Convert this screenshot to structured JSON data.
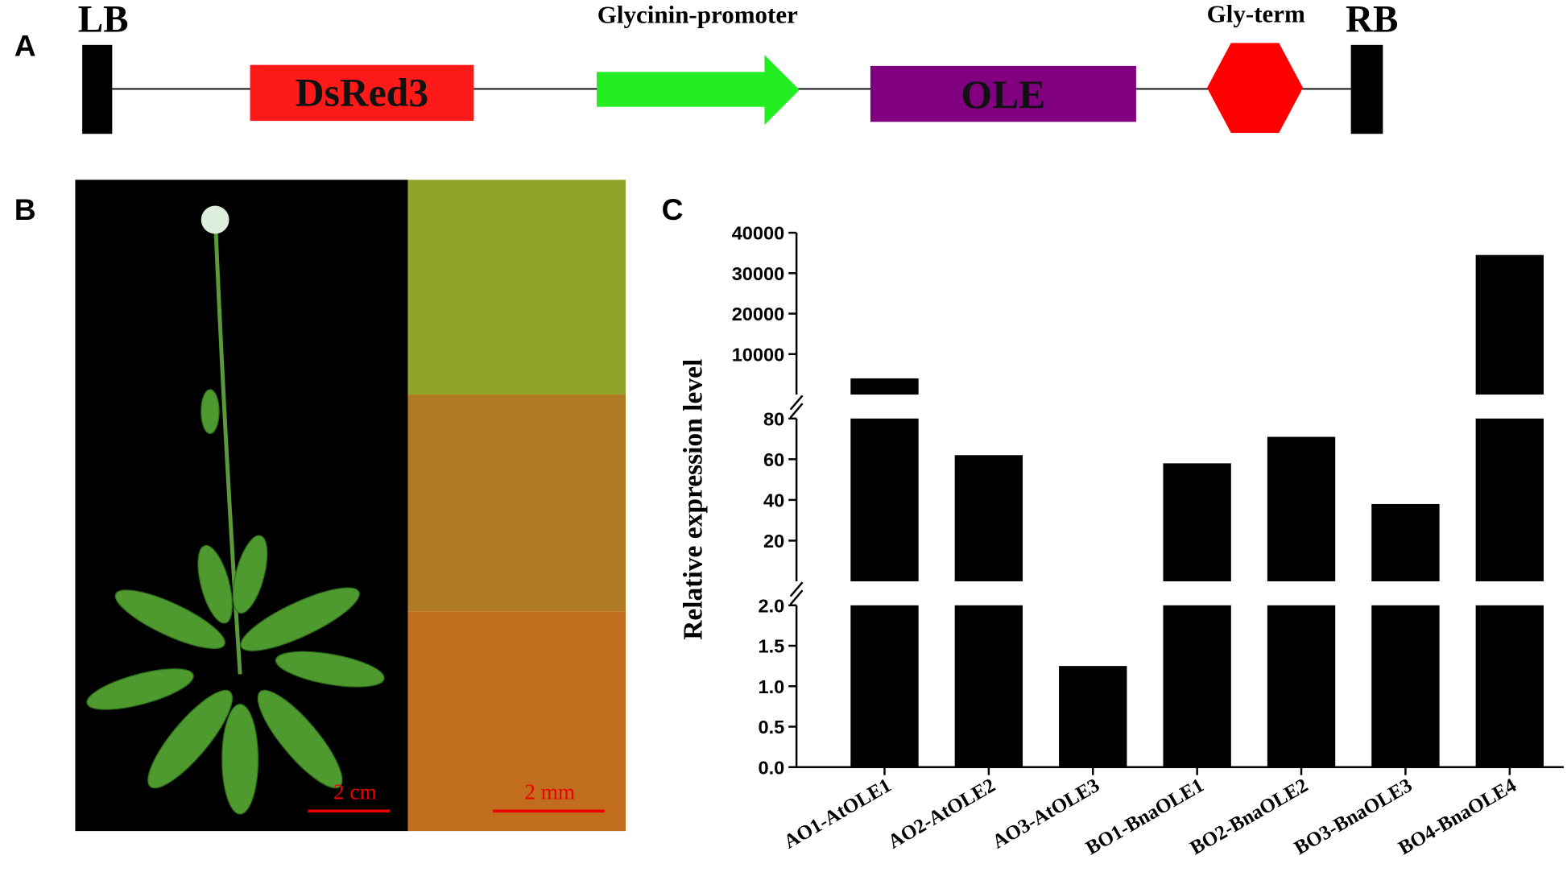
{
  "panel_a": {
    "label": "A",
    "left_border": "LB",
    "right_border": "RB",
    "promoter": "Glycinin-promoter",
    "terminator": "Gly-term",
    "reporter": "DsRed3",
    "gene": "OLE"
  },
  "panel_b": {
    "label": "B",
    "plant_scale": "2 cm",
    "seed_scale": "2 mm"
  },
  "chart_data": {
    "type": "broken-bar",
    "panel_label": "C",
    "y_label": "Relative expression level",
    "categories": [
      "AO1-AtOLE1",
      "AO2-AtOLE2",
      "AO3-AtOLE3",
      "BO1-BnaOLE1",
      "BO2-BnaOLE2",
      "BO3-BnaOLE3",
      "BO4-BnaOLE4"
    ],
    "values": [
      4000,
      62,
      1.25,
      58,
      71,
      38,
      34500
    ],
    "color": "#000000",
    "y_segments": [
      {
        "ylim": [
          0,
          2
        ],
        "yticks": [
          {
            "value": 0,
            "label": "0.0"
          },
          0.5,
          {
            "value": 1,
            "label": "1.0"
          },
          1.5,
          {
            "value": 2,
            "label": "2.0"
          }
        ]
      },
      {
        "ylim": [
          0,
          80
        ],
        "yticks": [
          20,
          40,
          60,
          80
        ]
      },
      {
        "ylim": [
          0,
          40000
        ],
        "yticks": [
          10000,
          20000,
          30000,
          40000
        ]
      }
    ]
  }
}
